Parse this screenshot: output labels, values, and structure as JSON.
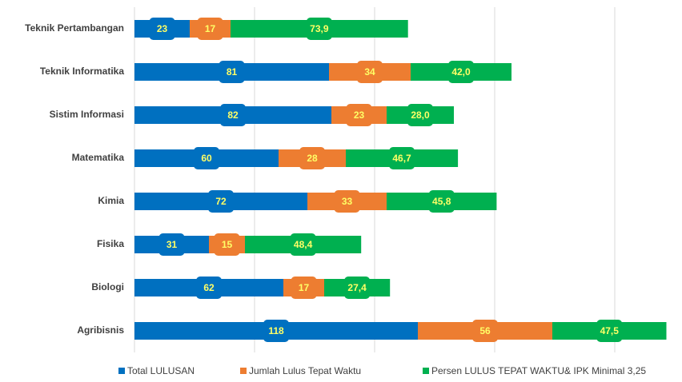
{
  "chart_data": {
    "type": "stacked_bar_horizontal",
    "categories": [
      "Teknik Pertambangan",
      "Teknik Informatika",
      "Sistim Informasi",
      "Matematika",
      "Kimia",
      "Fisika",
      "Biologi",
      "Agribisnis"
    ],
    "series": [
      {
        "name": "Total LULUSAN",
        "color": "#0070c0",
        "values": [
          23,
          81,
          82,
          60,
          72,
          31,
          62,
          118
        ]
      },
      {
        "name": "Jumlah Lulus Tepat Waktu",
        "color": "#ed7d31",
        "values": [
          17,
          34,
          23,
          28,
          33,
          15,
          17,
          56
        ]
      },
      {
        "name": "Persen LULUS TEPAT WAKTU& IPK Minimal 3,25",
        "color": "#00b050",
        "values": [
          73.9,
          42.0,
          28.0,
          46.7,
          45.8,
          48.4,
          27.4,
          47.5
        ],
        "value_labels": [
          "73,9",
          "42,0",
          "28,0",
          "46,7",
          "45,8",
          "48,4",
          "27,4",
          "47,5"
        ]
      }
    ],
    "xlim": [
      0,
      225
    ],
    "xticks": [
      0,
      50,
      100,
      150,
      200
    ],
    "grid": true,
    "legend": "bottom"
  }
}
